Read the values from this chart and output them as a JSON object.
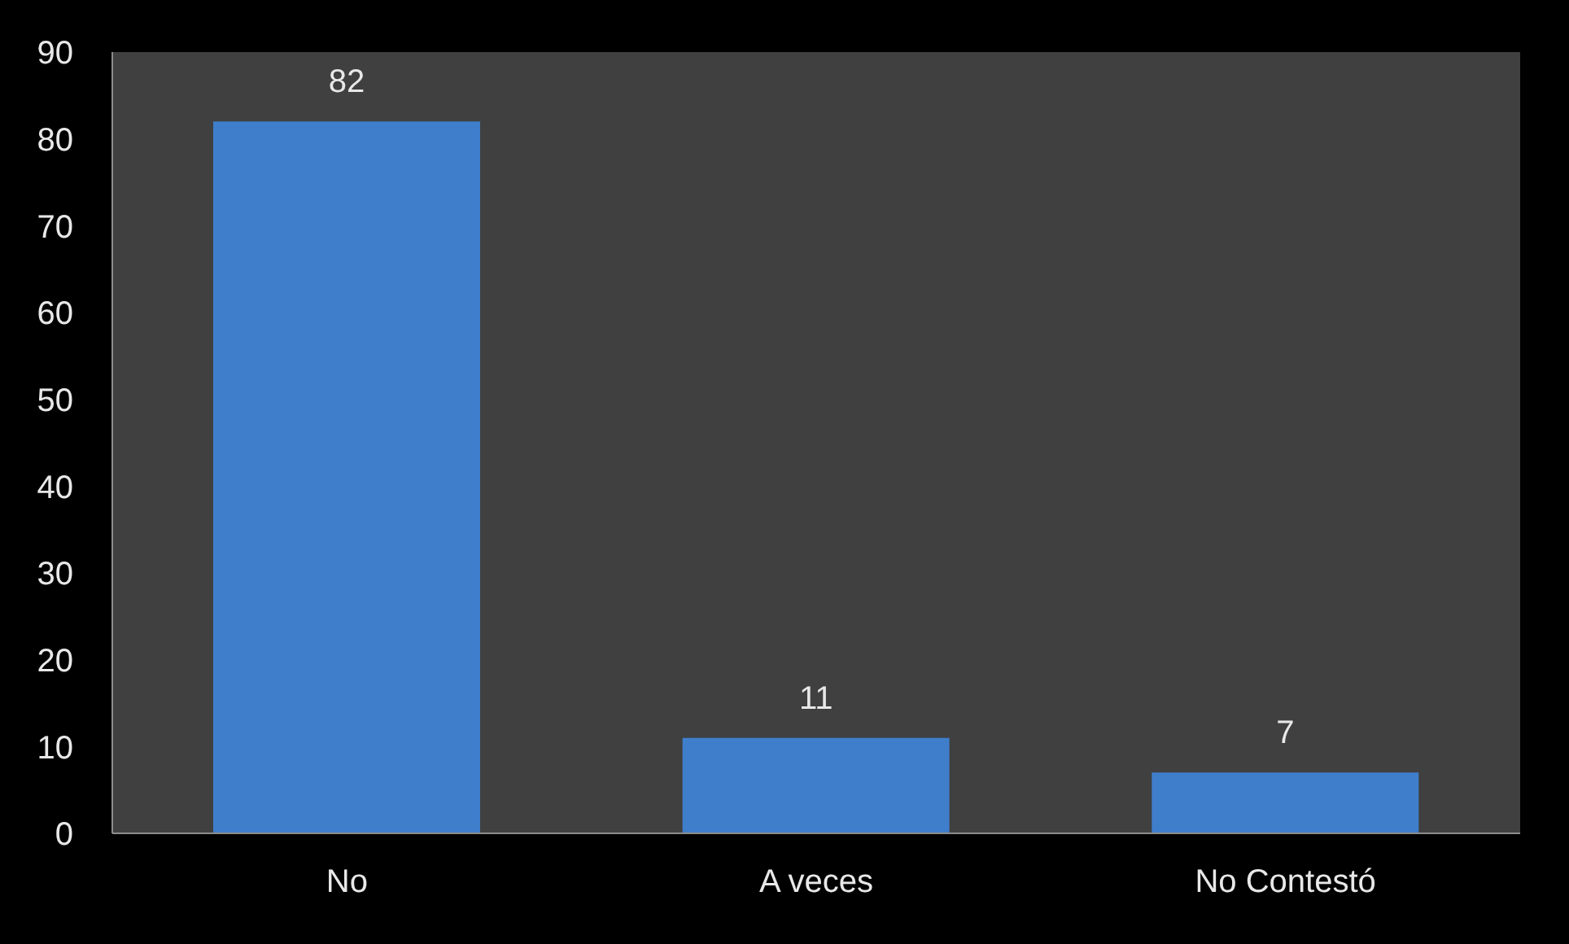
{
  "chart_data": {
    "type": "bar",
    "categories": [
      "No",
      "A veces",
      "No Contestó"
    ],
    "values": [
      82,
      11,
      7
    ],
    "color": "#3f7ecb",
    "ylim": [
      0,
      90
    ],
    "yticks": [
      0,
      10,
      20,
      30,
      40,
      50,
      60,
      70,
      80,
      90
    ],
    "data_labels": true
  }
}
